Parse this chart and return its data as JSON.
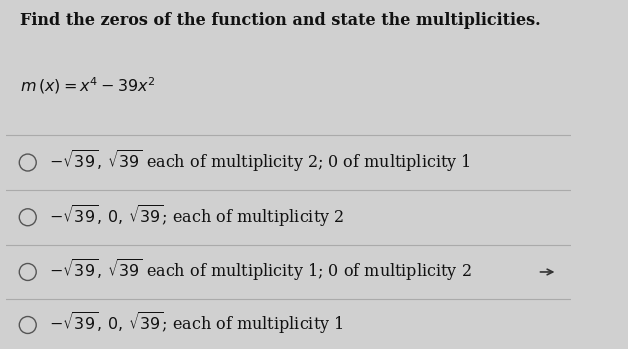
{
  "title": "Find the zeros of the function and state the multiplicities.",
  "function_label": "$m\\,(x)=x^4-39x^2$",
  "options": [
    "$-\\sqrt{39},\\, \\sqrt{39}$ each of multiplicity 2; 0 of multiplicity 1",
    "$-\\sqrt{39},\\, 0,\\, \\sqrt{39}$; each of multiplicity 2",
    "$-\\sqrt{39},\\, \\sqrt{39}$ each of multiplicity 1; 0 of multiplicity 2",
    "$-\\sqrt{39},\\, 0,\\, \\sqrt{39}$; each of multiplicity 1"
  ],
  "bg_color": "#d0d0d0",
  "panel_color": "#f0f0f0",
  "title_fontsize": 11.5,
  "func_fontsize": 11.5,
  "option_fontsize": 11.5,
  "title_color": "#111111",
  "option_color": "#111111",
  "divider_color": "#aaaaaa",
  "circle_color": "#555555"
}
